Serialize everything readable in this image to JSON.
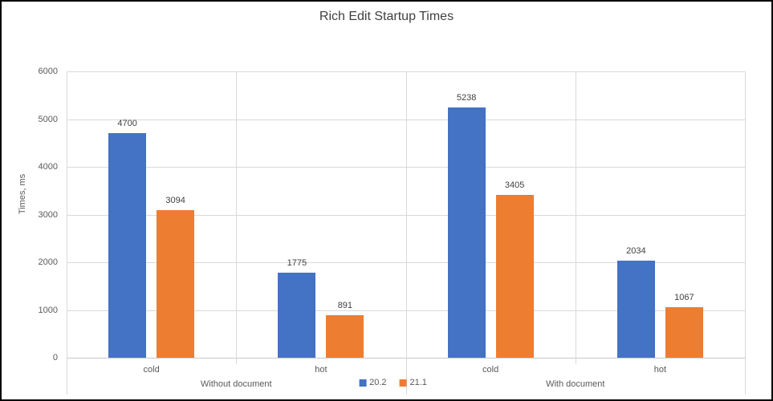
{
  "chart_data": {
    "type": "bar",
    "title": "Rich Edit Startup Times",
    "ylabel": "Times, ms",
    "xlabel": "",
    "ylim": [
      0,
      6000
    ],
    "ytick_interval": 1000,
    "grid": true,
    "legend_position": "bottom",
    "data_labels": true,
    "groups": [
      {
        "label": "Without document",
        "categories": [
          "cold",
          "hot"
        ]
      },
      {
        "label": "With document",
        "categories": [
          "cold",
          "hot"
        ]
      }
    ],
    "categories": [
      "cold",
      "hot",
      "cold",
      "hot"
    ],
    "series": [
      {
        "name": "20.2",
        "color": "#4472C4",
        "values": [
          4700,
          1775,
          5238,
          2034
        ]
      },
      {
        "name": "21.1",
        "color": "#ED7D31",
        "values": [
          3094,
          891,
          3405,
          1067
        ]
      }
    ]
  },
  "colors": {
    "background": "#FFFFFF",
    "border": "#000000",
    "gridline": "#D9D9D9",
    "axis_line": "#C8C8C8",
    "axis_text": "#595959",
    "title_text": "#404040",
    "data_label_text": "#404040"
  }
}
